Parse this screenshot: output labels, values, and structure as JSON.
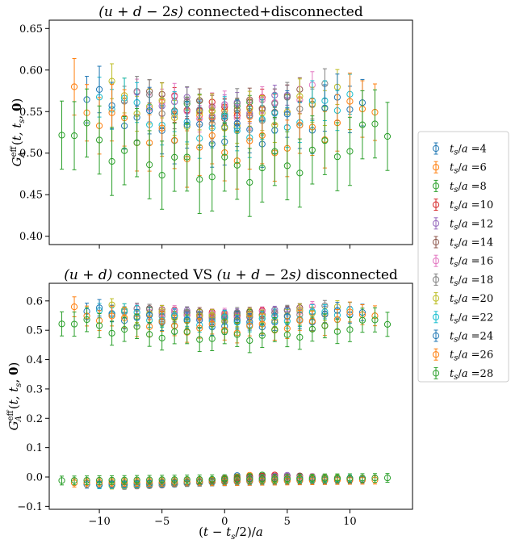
{
  "chart_data": [
    {
      "type": "scatter",
      "title": "(u + d − 2s) connected+disconnected",
      "ylabel": "G_A^eff(t, t_s, 0)",
      "xlabel": "",
      "xlim": [
        -14,
        15
      ],
      "ylim": [
        0.39,
        0.66
      ],
      "yticks": [
        "0.40",
        "0.45",
        "0.50",
        "0.55",
        "0.60",
        "0.65"
      ],
      "ytick_values": [
        0.4,
        0.45,
        0.5,
        0.55,
        0.6,
        0.65
      ],
      "xticks": [
        "",
        "",
        "",
        "",
        ""
      ],
      "xtick_values": [
        -10,
        -5,
        0,
        5,
        10
      ],
      "series": [
        {
          "name": "t_s/a =4",
          "color": "#1f77b4",
          "center": 0.533,
          "edge": 0.545,
          "err": 0.004
        },
        {
          "name": "t_s/a =6",
          "color": "#ff7f0e",
          "center": 0.545,
          "edge": 0.558,
          "err": 0.006
        },
        {
          "name": "t_s/a =8",
          "color": "#2ca02c",
          "center": 0.552,
          "edge": 0.565,
          "err": 0.008
        },
        {
          "name": "t_s/a =10",
          "color": "#d62728",
          "center": 0.553,
          "edge": 0.568,
          "err": 0.01
        },
        {
          "name": "t_s/a =12",
          "color": "#9467bd",
          "center": 0.553,
          "edge": 0.572,
          "err": 0.012
        },
        {
          "name": "t_s/a =14",
          "color": "#8c564b",
          "center": 0.552,
          "edge": 0.574,
          "err": 0.014
        },
        {
          "name": "t_s/a =16",
          "color": "#e377c2",
          "center": 0.55,
          "edge": 0.577,
          "err": 0.016
        },
        {
          "name": "t_s/a =18",
          "color": "#7f7f7f",
          "center": 0.547,
          "edge": 0.58,
          "err": 0.018
        },
        {
          "name": "t_s/a =20",
          "color": "#bcbd22",
          "center": 0.54,
          "edge": 0.582,
          "err": 0.021
        },
        {
          "name": "t_s/a =22",
          "color": "#17becf",
          "center": 0.53,
          "edge": 0.582,
          "err": 0.024
        },
        {
          "name": "t_s/a =24",
          "color": "#1f77b4",
          "center": 0.522,
          "edge": 0.58,
          "err": 0.028
        },
        {
          "name": "t_s/a =26",
          "color": "#ff7f0e",
          "center": 0.505,
          "edge": 0.575,
          "err": 0.034
        },
        {
          "name": "t_s/a =28",
          "color": "#2ca02c",
          "center": 0.48,
          "edge": 0.545,
          "err": 0.041
        }
      ]
    },
    {
      "type": "scatter",
      "title": "(u + d) connected VS (u + d − 2s) disconnected",
      "ylabel": "G_A^eff(t, t_s, 0)",
      "xlabel": "(t − t_s/2)/a",
      "xlim": [
        -14,
        15
      ],
      "ylim": [
        -0.11,
        0.66
      ],
      "yticks": [
        "−0.1",
        "0.0",
        "0.1",
        "0.2",
        "0.3",
        "0.4",
        "0.5",
        "0.6"
      ],
      "ytick_values": [
        -0.1,
        0.0,
        0.1,
        0.2,
        0.3,
        0.4,
        0.5,
        0.6
      ],
      "xticks": [
        "−10",
        "−5",
        "0",
        "5",
        "10"
      ],
      "xtick_values": [
        -10,
        -5,
        0,
        5,
        10
      ],
      "connected_note": "upper band: same series as top panel",
      "disconnected_series": [
        {
          "name": "t_s/a =4",
          "color": "#1f77b4",
          "start": -0.01,
          "end": 0.005,
          "err": 0.004
        },
        {
          "name": "t_s/a =6",
          "color": "#ff7f0e",
          "start": -0.015,
          "end": 0.006,
          "err": 0.005
        },
        {
          "name": "t_s/a =8",
          "color": "#2ca02c",
          "start": -0.02,
          "end": 0.007,
          "err": 0.006
        },
        {
          "name": "t_s/a =10",
          "color": "#d62728",
          "start": -0.025,
          "end": 0.007,
          "err": 0.006
        },
        {
          "name": "t_s/a =12",
          "color": "#9467bd",
          "start": -0.028,
          "end": 0.006,
          "err": 0.007
        },
        {
          "name": "t_s/a =14",
          "color": "#8c564b",
          "start": -0.03,
          "end": 0.004,
          "err": 0.008
        },
        {
          "name": "t_s/a =16",
          "color": "#e377c2",
          "start": -0.031,
          "end": 0.002,
          "err": 0.009
        },
        {
          "name": "t_s/a =18",
          "color": "#7f7f7f",
          "start": -0.032,
          "end": 0.0,
          "err": 0.01
        },
        {
          "name": "t_s/a =20",
          "color": "#bcbd22",
          "start": -0.03,
          "end": -0.002,
          "err": 0.011
        },
        {
          "name": "t_s/a =22",
          "color": "#17becf",
          "start": -0.028,
          "end": -0.005,
          "err": 0.012
        },
        {
          "name": "t_s/a =24",
          "color": "#1f77b4",
          "start": -0.025,
          "end": -0.008,
          "err": 0.013
        },
        {
          "name": "t_s/a =26",
          "color": "#ff7f0e",
          "start": -0.02,
          "end": -0.01,
          "err": 0.014
        },
        {
          "name": "t_s/a =28",
          "color": "#2ca02c",
          "start": -0.012,
          "end": -0.003,
          "err": 0.015
        }
      ]
    }
  ],
  "legend": {
    "placement": "right",
    "entries": [
      {
        "label": "t_s/a =4",
        "color": "#1f77b4"
      },
      {
        "label": "t_s/a =6",
        "color": "#ff7f0e"
      },
      {
        "label": "t_s/a =8",
        "color": "#2ca02c"
      },
      {
        "label": "t_s/a =10",
        "color": "#d62728"
      },
      {
        "label": "t_s/a =12",
        "color": "#9467bd"
      },
      {
        "label": "t_s/a =14",
        "color": "#8c564b"
      },
      {
        "label": "t_s/a =16",
        "color": "#e377c2"
      },
      {
        "label": "t_s/a =18",
        "color": "#7f7f7f"
      },
      {
        "label": "t_s/a =20",
        "color": "#bcbd22"
      },
      {
        "label": "t_s/a =22",
        "color": "#17becf"
      },
      {
        "label": "t_s/a =24",
        "color": "#1f77b4"
      },
      {
        "label": "t_s/a =26",
        "color": "#ff7f0e"
      },
      {
        "label": "t_s/a =28",
        "color": "#2ca02c"
      }
    ]
  }
}
